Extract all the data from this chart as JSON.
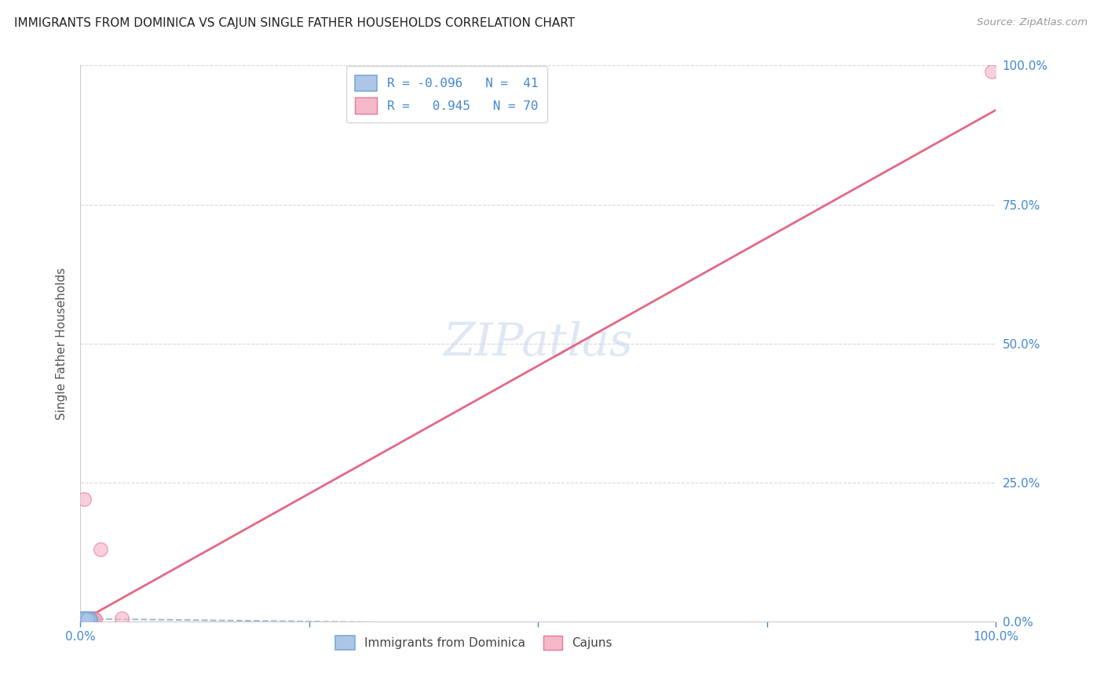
{
  "title": "IMMIGRANTS FROM DOMINICA VS CAJUN SINGLE FATHER HOUSEHOLDS CORRELATION CHART",
  "source": "Source: ZipAtlas.com",
  "ylabel": "Single Father Households",
  "xlim": [
    0,
    100
  ],
  "ylim": [
    0,
    100
  ],
  "blue_color": "#adc6e8",
  "blue_edge_color": "#7aaad4",
  "pink_color": "#f5b8c8",
  "pink_edge_color": "#e87898",
  "blue_line_color": "#90b0d0",
  "pink_line_color": "#e05878",
  "title_color": "#222222",
  "source_color": "#999999",
  "axis_tick_color": "#4488cc",
  "watermark_color": "#c8d8eb",
  "blue_scatter_x": [
    0.15,
    0.25,
    0.35,
    0.45,
    0.55,
    0.65,
    0.75,
    0.85,
    0.95,
    1.05,
    0.2,
    0.3,
    0.4,
    0.5,
    0.6,
    0.7,
    0.8,
    0.9,
    1.0,
    1.1,
    0.18,
    0.28,
    0.38,
    0.48,
    0.58,
    0.68,
    0.78,
    0.88,
    0.98,
    1.08,
    0.22,
    0.32,
    0.42,
    0.52,
    0.62,
    0.72,
    0.82,
    0.92,
    1.02,
    0.45,
    0.75
  ],
  "blue_scatter_y": [
    0.3,
    0.45,
    0.25,
    0.55,
    0.35,
    0.5,
    0.4,
    0.6,
    0.3,
    0.45,
    0.5,
    0.35,
    0.6,
    0.4,
    0.55,
    0.3,
    0.45,
    0.25,
    0.5,
    0.35,
    0.4,
    0.55,
    0.3,
    0.45,
    0.6,
    0.35,
    0.5,
    0.4,
    0.55,
    0.3,
    0.45,
    0.35,
    0.5,
    0.4,
    0.55,
    0.3,
    0.45,
    0.6,
    0.35,
    0.5,
    0.4
  ],
  "pink_scatter_x": [
    0.1,
    0.2,
    0.3,
    0.4,
    0.5,
    0.6,
    0.7,
    0.8,
    0.9,
    1.0,
    1.1,
    1.2,
    1.3,
    1.4,
    1.5,
    0.15,
    0.25,
    0.35,
    0.45,
    0.55,
    0.65,
    0.75,
    0.85,
    0.95,
    1.05,
    1.15,
    1.25,
    1.35,
    1.45,
    0.2,
    0.3,
    0.4,
    0.5,
    0.6,
    0.7,
    0.8,
    0.9,
    1.0,
    1.1,
    1.2,
    0.35,
    0.45,
    0.55,
    0.65,
    0.75,
    0.85,
    0.95,
    1.05,
    1.15,
    1.25,
    0.4,
    0.5,
    0.6,
    0.7,
    0.8,
    0.9,
    1.0,
    1.1,
    1.2,
    1.3,
    0.25,
    0.35,
    4.5,
    1.6,
    0.45,
    0.55,
    0.65,
    0.75,
    99.5,
    2.2
  ],
  "pink_scatter_y": [
    0.2,
    0.35,
    0.25,
    0.4,
    0.3,
    0.45,
    0.35,
    0.5,
    0.3,
    0.4,
    0.45,
    0.35,
    0.5,
    0.4,
    0.55,
    0.25,
    0.4,
    0.3,
    0.45,
    0.35,
    0.5,
    0.4,
    0.55,
    0.3,
    0.45,
    0.35,
    0.5,
    0.4,
    0.55,
    0.3,
    0.45,
    0.35,
    0.5,
    0.4,
    0.55,
    0.3,
    0.45,
    0.35,
    0.5,
    0.4,
    0.55,
    0.45,
    0.35,
    0.5,
    0.4,
    0.55,
    0.3,
    0.45,
    0.35,
    0.5,
    0.4,
    0.55,
    0.45,
    0.35,
    0.5,
    0.3,
    0.45,
    0.35,
    0.5,
    0.4,
    0.55,
    0.35,
    0.5,
    0.4,
    22.0,
    0.5,
    0.4,
    0.55,
    99.0,
    13.0
  ],
  "pink_line_start_x": 0,
  "pink_line_start_y": 0,
  "pink_line_end_x": 100,
  "pink_line_end_y": 92,
  "blue_line_start_x": 0,
  "blue_line_start_y": 0.5,
  "blue_line_end_x": 100,
  "blue_line_end_y": -1.5
}
